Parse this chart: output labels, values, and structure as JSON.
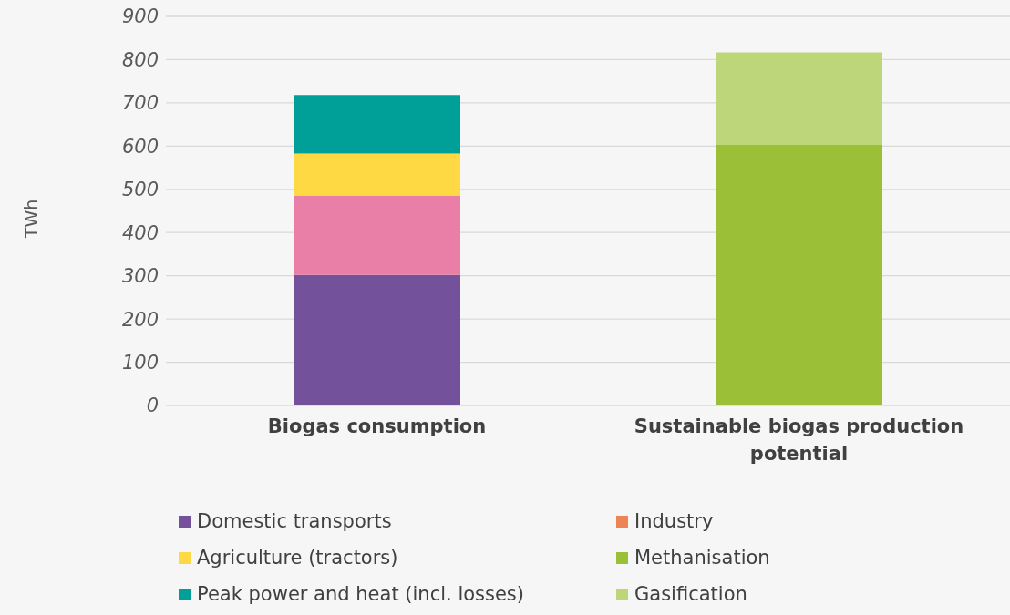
{
  "chart_data": {
    "type": "bar",
    "stacked": true,
    "ylabel": "TWh",
    "categories": [
      "Biogas consumption",
      "Sustainable biogas production potential"
    ],
    "series": [
      {
        "name": "Domestic transports",
        "color": "#74519b",
        "values": [
          302,
          null
        ]
      },
      {
        "color": "#e97fa6",
        "values": [
          183,
          null
        ]
      },
      {
        "name": "Agriculture (tractors)",
        "color": "#ffd944",
        "values": [
          98,
          null
        ]
      },
      {
        "name": "Peak power and heat (incl. losses)",
        "color": "#009f98",
        "values": [
          135,
          null
        ]
      },
      {
        "name": "Industry",
        "color": "#ee8456",
        "values": [
          null,
          null
        ]
      },
      {
        "name": "Methanisation",
        "color": "#9bbf36",
        "values": [
          null,
          603
        ]
      },
      {
        "name": "Gasification",
        "color": "#bdd67a",
        "values": [
          null,
          214
        ]
      }
    ],
    "ylim": [
      0,
      900
    ],
    "yticks": [
      0,
      100,
      200,
      300,
      400,
      500,
      600,
      700,
      800,
      900
    ],
    "grid": "y",
    "legend": "bottom"
  }
}
